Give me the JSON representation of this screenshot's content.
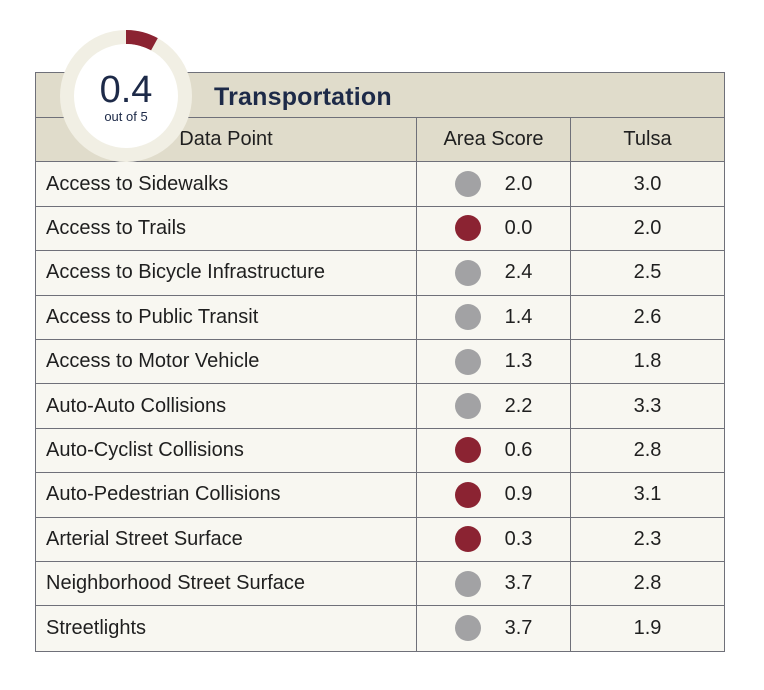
{
  "badge": {
    "score": "0.4",
    "out_of": "out of 5",
    "fraction": 0.08,
    "colors": {
      "ring": "#f1efe4",
      "accent": "#8b2332",
      "inner": "#ffffff",
      "score_text": "#1d2a48"
    }
  },
  "section": {
    "title": "Transportation"
  },
  "table": {
    "columns": [
      "Data Point",
      "Area Score",
      "Tulsa"
    ],
    "rows": [
      {
        "label": "Access to Sidewalks",
        "score": "2.0",
        "tulsa": "3.0",
        "status": "neutral"
      },
      {
        "label": "Access to Trails",
        "score": "0.0",
        "tulsa": "2.0",
        "status": "low"
      },
      {
        "label": "Access to Bicycle Infrastructure",
        "score": "2.4",
        "tulsa": "2.5",
        "status": "neutral"
      },
      {
        "label": "Access to Public Transit",
        "score": "1.4",
        "tulsa": "2.6",
        "status": "neutral"
      },
      {
        "label": "Access to Motor Vehicle",
        "score": "1.3",
        "tulsa": "1.8",
        "status": "neutral"
      },
      {
        "label": "Auto-Auto Collisions",
        "score": "2.2",
        "tulsa": "3.3",
        "status": "neutral"
      },
      {
        "label": "Auto-Cyclist Collisions",
        "score": "0.6",
        "tulsa": "2.8",
        "status": "low"
      },
      {
        "label": "Auto-Pedestrian Collisions",
        "score": "0.9",
        "tulsa": "3.1",
        "status": "low"
      },
      {
        "label": "Arterial Street Surface",
        "score": "0.3",
        "tulsa": "2.3",
        "status": "low"
      },
      {
        "label": "Neighborhood Street Surface",
        "score": "3.7",
        "tulsa": "2.8",
        "status": "neutral"
      },
      {
        "label": "Streetlights",
        "score": "3.7",
        "tulsa": "1.9",
        "status": "neutral"
      }
    ]
  },
  "status_colors": {
    "low": "#8b2332",
    "neutral": "#a2a2a4"
  }
}
